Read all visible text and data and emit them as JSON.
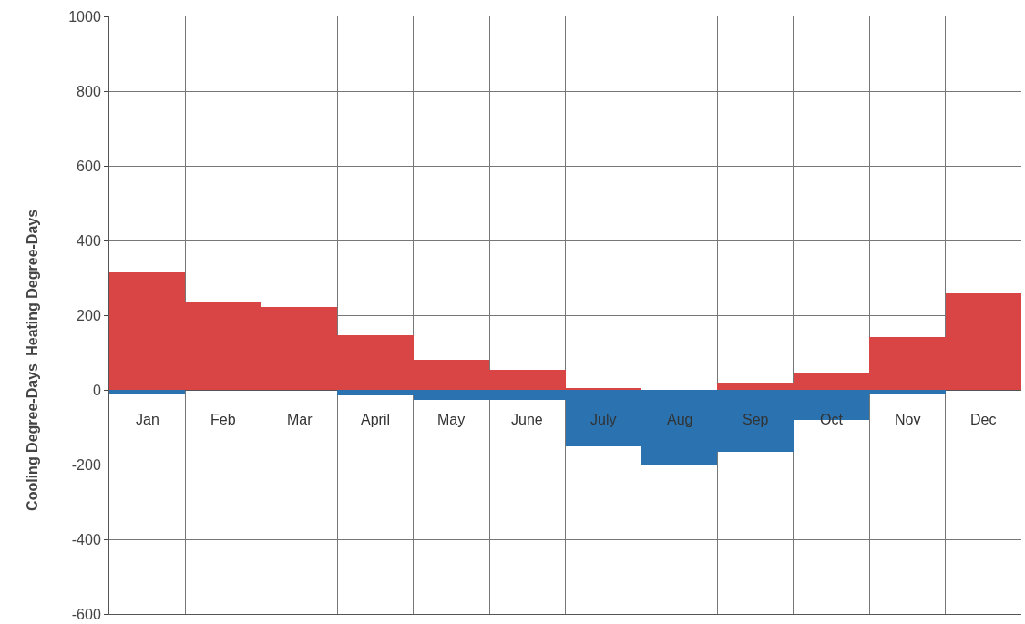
{
  "chart_data": {
    "type": "bar",
    "categories": [
      "Jan",
      "Feb",
      "Mar",
      "April",
      "May",
      "June",
      "July",
      "Aug",
      "Sep",
      "Oct",
      "Nov",
      "Dec"
    ],
    "series": [
      {
        "color": "#d94545",
        "values": [
          315,
          237,
          222,
          146,
          80,
          54,
          5,
          0,
          20,
          44,
          141,
          259
        ]
      },
      {
        "color": "#2a73b0",
        "values": [
          -10,
          0,
          0,
          -15,
          -27,
          -27,
          -150,
          -200,
          -165,
          -80,
          -12,
          0
        ]
      }
    ],
    "ylim": [
      -600,
      1000
    ],
    "yticks": [
      -600,
      -400,
      -200,
      0,
      200,
      400,
      600,
      800,
      1000
    ],
    "grid": true,
    "stacked": true,
    "annotations": [
      "Heating Degree-Days",
      "Cooling Degree-Days"
    ]
  }
}
